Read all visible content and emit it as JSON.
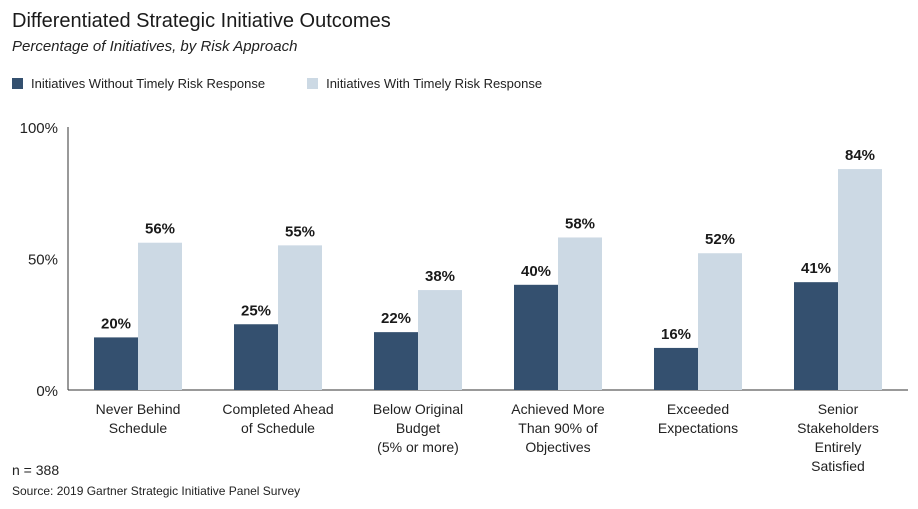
{
  "chart_data": {
    "type": "bar",
    "title": "Differentiated Strategic Initiative Outcomes",
    "subtitle": "Percentage of Initiatives, by Risk Approach",
    "categories": [
      [
        "Never Behind",
        "Schedule"
      ],
      [
        "Completed Ahead",
        "of Schedule"
      ],
      [
        "Below Original",
        "Budget",
        "(5% or more)"
      ],
      [
        "Achieved More",
        "Than 90% of",
        "Objectives"
      ],
      [
        "Exceeded",
        "Expectations"
      ],
      [
        "Senior",
        "Stakeholders",
        "Entirely",
        "Satisfied"
      ]
    ],
    "series": [
      {
        "name": "Initiatives Without Timely Risk Response",
        "color": "#34506f",
        "values": [
          20,
          25,
          22,
          40,
          16,
          41
        ]
      },
      {
        "name": "Initiatives With Timely Risk Response",
        "color": "#ccd9e4",
        "values": [
          56,
          55,
          38,
          58,
          52,
          84
        ]
      }
    ],
    "yticks": [
      "0%",
      "50%",
      "100%"
    ],
    "ylim": [
      0,
      100
    ],
    "value_suffix": "%",
    "legend_position": "top-left",
    "grid": false
  },
  "footer": {
    "n_note": "n = 388",
    "source": "Source: 2019 Gartner Strategic Initiative Panel Survey"
  }
}
